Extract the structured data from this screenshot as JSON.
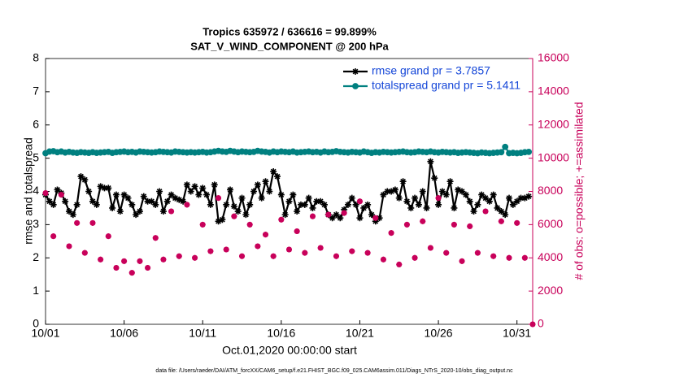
{
  "chart_data": {
    "type": "line",
    "title": "Tropics 635972 / 636616 = 99.899%",
    "subtitle": "SAT_V_WIND_COMPONENT @ 200 hPa",
    "xlabel": "Oct.01,2020 00:00:00 start",
    "ylabel": "rmse and totalspread",
    "y2label": "# of obs: o=possible; +=assimilated",
    "footer": "data file: /Users/raeder/DAI/ATM_forcXX/CAM6_setup/f.e21.FHIST_BGC.f09_025.CAM6assim.011/Diags_NTrS_2020-10/obs_diag_output.nc",
    "xlim": [
      0,
      31
    ],
    "xticks": [
      {
        "value": 0,
        "label": "10/01"
      },
      {
        "value": 5,
        "label": "10/06"
      },
      {
        "value": 10,
        "label": "10/11"
      },
      {
        "value": 15,
        "label": "10/16"
      },
      {
        "value": 20,
        "label": "10/21"
      },
      {
        "value": 25,
        "label": "10/26"
      },
      {
        "value": 30,
        "label": "10/31"
      }
    ],
    "ylim": [
      0,
      8
    ],
    "yticks": [
      0,
      1,
      2,
      3,
      4,
      5,
      6,
      7,
      8
    ],
    "y2lim": [
      0,
      16000
    ],
    "y2ticks": [
      0,
      2000,
      4000,
      6000,
      8000,
      10000,
      12000,
      14000,
      16000
    ],
    "y2_color": "#c8005a",
    "legend_text_color": "#1446d8",
    "legend": "upper right",
    "grid": false,
    "series": [
      {
        "name": "rmse grand pr = 3.7857",
        "color": "#000000",
        "marker": "*",
        "line": true,
        "x": [
          0,
          0.25,
          0.5,
          0.75,
          1,
          1.25,
          1.5,
          1.75,
          2,
          2.25,
          2.5,
          2.75,
          3,
          3.25,
          3.5,
          3.75,
          4,
          4.25,
          4.5,
          4.75,
          5,
          5.25,
          5.5,
          5.75,
          6,
          6.25,
          6.5,
          6.75,
          7,
          7.25,
          7.5,
          7.75,
          8,
          8.25,
          8.5,
          8.75,
          9,
          9.25,
          9.5,
          9.75,
          10,
          10.25,
          10.5,
          10.75,
          11,
          11.25,
          11.5,
          11.75,
          12,
          12.25,
          12.5,
          12.75,
          13,
          13.25,
          13.5,
          13.75,
          14,
          14.25,
          14.5,
          14.75,
          15,
          15.25,
          15.5,
          15.75,
          16,
          16.25,
          16.5,
          16.75,
          17,
          17.25,
          17.5,
          17.75,
          18,
          18.25,
          18.5,
          18.75,
          19,
          19.25,
          19.5,
          19.75,
          20,
          20.25,
          20.5,
          20.75,
          21,
          21.25,
          21.5,
          21.75,
          22,
          22.25,
          22.5,
          22.75,
          23,
          23.25,
          23.5,
          23.75,
          24,
          24.25,
          24.5,
          24.75,
          25,
          25.25,
          25.5,
          25.75,
          26,
          26.25,
          26.5,
          26.75,
          27,
          27.25,
          27.5,
          27.75,
          28,
          28.25,
          28.5,
          28.75,
          29,
          29.25,
          29.5,
          29.75,
          30,
          30.25,
          30.5,
          30.75
        ],
        "values": [
          3.9,
          3.7,
          3.6,
          4.05,
          3.95,
          3.7,
          3.4,
          3.3,
          3.6,
          4.45,
          4.35,
          4.0,
          3.7,
          3.6,
          4.15,
          4.1,
          4.1,
          3.5,
          3.9,
          3.4,
          3.9,
          3.8,
          3.6,
          3.3,
          3.4,
          3.85,
          3.7,
          3.7,
          3.6,
          4.0,
          3.4,
          3.7,
          3.9,
          3.8,
          3.75,
          3.7,
          4.2,
          4.0,
          4.15,
          3.9,
          4.1,
          3.9,
          3.6,
          4.2,
          3.1,
          3.15,
          3.6,
          4.05,
          3.55,
          3.4,
          3.8,
          3.3,
          3.6,
          4.0,
          4.2,
          3.8,
          4.3,
          4.0,
          4.6,
          4.45,
          3.9,
          3.3,
          3.7,
          3.9,
          3.4,
          3.6,
          3.6,
          3.8,
          3.5,
          3.7,
          3.7,
          3.6,
          3.3,
          3.2,
          3.3,
          3.2,
          3.45,
          3.6,
          3.8,
          3.6,
          3.2,
          3.5,
          3.6,
          3.3,
          3.1,
          3.2,
          3.9,
          4.0,
          4.0,
          4.05,
          3.8,
          4.3,
          3.7,
          3.5,
          3.8,
          3.6,
          4.0,
          3.5,
          4.9,
          4.4,
          3.6,
          4.0,
          3.9,
          4.3,
          3.5,
          4.05,
          4.0,
          3.9,
          3.7,
          3.4,
          3.6,
          3.9,
          3.8,
          3.7,
          3.9,
          3.5,
          3.4,
          3.3,
          3.8,
          3.6,
          3.7,
          3.8,
          3.8,
          3.85
        ]
      },
      {
        "name": "totalspread grand pr = 5.1411",
        "color": "#008080",
        "marker": "o",
        "line": true,
        "x": [
          0,
          0.25,
          0.5,
          0.75,
          1,
          1.25,
          1.5,
          1.75,
          2,
          2.25,
          2.5,
          2.75,
          3,
          3.25,
          3.5,
          3.75,
          4,
          4.25,
          4.5,
          4.75,
          5,
          5.25,
          5.5,
          5.75,
          6,
          6.25,
          6.5,
          6.75,
          7,
          7.25,
          7.5,
          7.75,
          8,
          8.25,
          8.5,
          8.75,
          9,
          9.25,
          9.5,
          9.75,
          10,
          10.25,
          10.5,
          10.75,
          11,
          11.25,
          11.5,
          11.75,
          12,
          12.25,
          12.5,
          12.75,
          13,
          13.25,
          13.5,
          13.75,
          14,
          14.25,
          14.5,
          14.75,
          15,
          15.25,
          15.5,
          15.75,
          16,
          16.25,
          16.5,
          16.75,
          17,
          17.25,
          17.5,
          17.75,
          18,
          18.25,
          18.5,
          18.75,
          19,
          19.25,
          19.5,
          19.75,
          20,
          20.25,
          20.5,
          20.75,
          21,
          21.25,
          21.5,
          21.75,
          22,
          22.25,
          22.5,
          22.75,
          23,
          23.25,
          23.5,
          23.75,
          24,
          24.25,
          24.5,
          24.75,
          25,
          25.25,
          25.5,
          25.75,
          26,
          26.25,
          26.5,
          26.75,
          27,
          27.25,
          27.5,
          27.75,
          28,
          28.25,
          28.5,
          28.75,
          29,
          29.25,
          29.5,
          29.75,
          30,
          30.25,
          30.5,
          30.75
        ],
        "values": [
          5.15,
          5.2,
          5.21,
          5.18,
          5.2,
          5.17,
          5.19,
          5.17,
          5.16,
          5.18,
          5.17,
          5.16,
          5.18,
          5.16,
          5.17,
          5.18,
          5.19,
          5.16,
          5.18,
          5.19,
          5.2,
          5.18,
          5.19,
          5.17,
          5.2,
          5.19,
          5.18,
          5.17,
          5.18,
          5.2,
          5.19,
          5.18,
          5.17,
          5.2,
          5.19,
          5.18,
          5.17,
          5.18,
          5.17,
          5.18,
          5.19,
          5.17,
          5.18,
          5.2,
          5.22,
          5.2,
          5.19,
          5.22,
          5.2,
          5.18,
          5.2,
          5.19,
          5.18,
          5.19,
          5.22,
          5.2,
          5.19,
          5.17,
          5.2,
          5.18,
          5.2,
          5.19,
          5.18,
          5.2,
          5.17,
          5.18,
          5.19,
          5.2,
          5.18,
          5.19,
          5.17,
          5.2,
          5.18,
          5.19,
          5.21,
          5.19,
          5.18,
          5.17,
          5.19,
          5.18,
          5.17,
          5.2,
          5.18,
          5.16,
          5.18,
          5.17,
          5.19,
          5.18,
          5.17,
          5.18,
          5.19,
          5.2,
          5.18,
          5.17,
          5.18,
          5.2,
          5.19,
          5.18,
          5.2,
          5.18,
          5.17,
          5.19,
          5.18,
          5.17,
          5.18,
          5.16,
          5.17,
          5.18,
          5.17,
          5.16,
          5.15,
          5.17,
          5.16,
          5.15,
          5.16,
          5.17,
          5.18,
          5.34,
          5.15,
          5.16,
          5.15,
          5.16,
          5.18,
          5.19
        ]
      },
      {
        "color": "#c8005a",
        "marker": "o",
        "line": false,
        "axis": "y2",
        "x": [
          0,
          0.5,
          1,
          1.5,
          2,
          2.5,
          3,
          3.5,
          4,
          4.5,
          5,
          5.5,
          6,
          6.5,
          7,
          7.5,
          8,
          8.5,
          9,
          9.5,
          10,
          10.5,
          11,
          11.5,
          12,
          12.5,
          13,
          13.5,
          14,
          14.5,
          15,
          15.5,
          16,
          16.5,
          17,
          17.5,
          18,
          18.5,
          19,
          19.5,
          20,
          20.5,
          21,
          21.5,
          22,
          22.5,
          23,
          23.5,
          24,
          24.5,
          25,
          25.5,
          26,
          26.5,
          27,
          27.5,
          28,
          28.5,
          29,
          29.5,
          30,
          30.5,
          31
        ],
        "values": [
          7900,
          5300,
          7800,
          4700,
          6100,
          4300,
          6100,
          3900,
          5300,
          3400,
          3800,
          3100,
          3800,
          3400,
          5200,
          3900,
          6800,
          4100,
          7200,
          4000,
          6000,
          4400,
          7600,
          4500,
          6500,
          4100,
          6000,
          4700,
          5400,
          4100,
          6300,
          4500,
          5600,
          4300,
          6500,
          4600,
          6600,
          4100,
          6700,
          4400,
          7400,
          4300,
          6400,
          3900,
          5500,
          3600,
          6000,
          4000,
          6200,
          4600,
          7600,
          4300,
          6000,
          3800,
          5900,
          4300,
          6800,
          4100,
          6200,
          4000,
          6100,
          4000,
          0
        ]
      },
      {
        "color": "#c8005a",
        "marker": "*",
        "line": false,
        "axis": "y2",
        "x": [
          0,
          0.5,
          1,
          1.5,
          2,
          2.5,
          3,
          3.5,
          4,
          4.5,
          5,
          5.5,
          6,
          6.5,
          7,
          7.5,
          8,
          8.5,
          9,
          9.5,
          10,
          10.5,
          11,
          11.5,
          12,
          12.5,
          13,
          13.5,
          14,
          14.5,
          15,
          15.5,
          16,
          16.5,
          17,
          17.5,
          18,
          18.5,
          19,
          19.5,
          20,
          20.5,
          21,
          21.5,
          22,
          22.5,
          23,
          23.5,
          24,
          24.5,
          25,
          25.5,
          26,
          26.5,
          27,
          27.5,
          28,
          28.5,
          29,
          29.5,
          30,
          30.5,
          31
        ],
        "values": [
          7900,
          5300,
          7800,
          4700,
          6100,
          4300,
          6100,
          3900,
          5300,
          3400,
          3800,
          3100,
          3800,
          3400,
          5200,
          3900,
          6800,
          4100,
          7200,
          4000,
          6000,
          4400,
          7600,
          4500,
          6500,
          4100,
          6000,
          4700,
          5400,
          4100,
          6300,
          4500,
          5600,
          4300,
          6500,
          4600,
          6600,
          4100,
          6700,
          4400,
          7400,
          4300,
          6400,
          3900,
          5500,
          3600,
          6000,
          4000,
          6200,
          4600,
          7600,
          4300,
          6000,
          3800,
          5900,
          4300,
          6800,
          4100,
          6200,
          4000,
          6100,
          4000,
          0
        ]
      }
    ]
  }
}
